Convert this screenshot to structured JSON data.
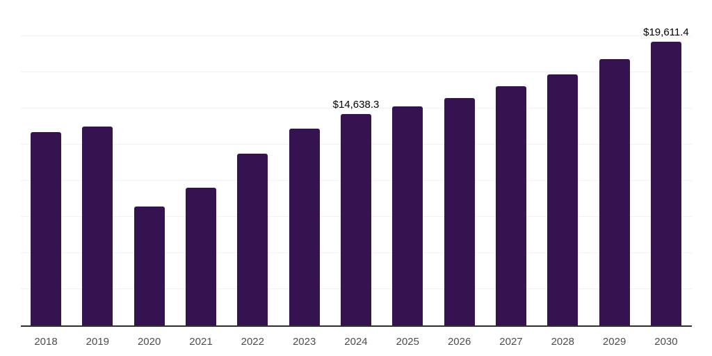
{
  "chart_data": {
    "type": "bar",
    "title": "",
    "xlabel": "",
    "ylabel": "",
    "categories": [
      "2018",
      "2019",
      "2020",
      "2021",
      "2022",
      "2023",
      "2024",
      "2025",
      "2026",
      "2027",
      "2028",
      "2029",
      "2030"
    ],
    "values": [
      13370,
      13750,
      8220,
      9520,
      11880,
      13610,
      14638.3,
      15150,
      15720,
      16540,
      17360,
      18410,
      19611.4
    ],
    "data_labels": {
      "2024": "$14,638.3",
      "2030": "$19,611.4"
    },
    "ylim": [
      0,
      22500
    ],
    "ytick_interval": 2500,
    "grid": "horizontal",
    "legend": "none",
    "colors": {
      "bar": "#351250",
      "axis_line": "#2e2e2e",
      "gridline": "#f2f2f2",
      "data_label": "#000000",
      "tick_label": "#4d4d4d",
      "background": "#ffffff"
    }
  }
}
